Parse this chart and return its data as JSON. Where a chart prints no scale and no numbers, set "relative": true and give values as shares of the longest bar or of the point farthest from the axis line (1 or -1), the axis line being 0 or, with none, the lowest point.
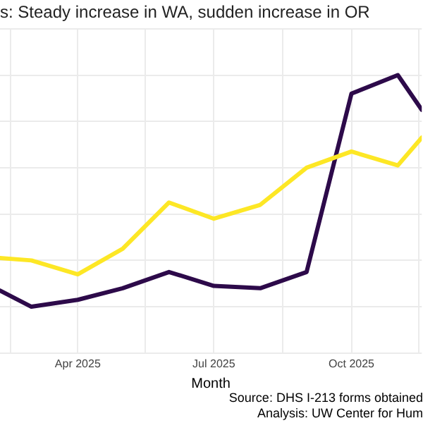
{
  "chart_data": {
    "type": "line",
    "title": "s: Steady increase in WA, sudden increase in OR",
    "xlabel": "Month",
    "relative": true,
    "grid": true,
    "marker": "none",
    "line_style": "solid",
    "x": [
      "2025-02-08",
      "2025-03-01",
      "2025-04-01",
      "2025-05-01",
      "2025-06-01",
      "2025-07-01",
      "2025-08-01",
      "2025-09-01",
      "2025-10-01",
      "2025-11-01",
      "2025-11-17"
    ],
    "xlim": [
      "2025-02-08",
      "2025-11-17"
    ],
    "xticks": [
      {
        "value": "2025-02-15",
        "label": null
      },
      {
        "value": "2025-04-01",
        "label": "Apr 2025"
      },
      {
        "value": "2025-05-16",
        "label": null
      },
      {
        "value": "2025-07-01",
        "label": "Jul 2025"
      },
      {
        "value": "2025-08-16",
        "label": null
      },
      {
        "value": "2025-10-01",
        "label": "Oct 2025"
      },
      {
        "value": "2025-11-15",
        "label": null
      }
    ],
    "series": [
      {
        "color": "#fde725",
        "values": [
          0.21,
          0.2,
          0.14,
          0.25,
          0.45,
          0.38,
          0.44,
          0.6,
          0.67,
          0.61,
          0.73
        ]
      },
      {
        "color": "#2d0a4a",
        "values": [
          0.07,
          0,
          0.03,
          0.08,
          0.15,
          0.09,
          0.08,
          0.15,
          0.92,
          1,
          0.85
        ]
      }
    ],
    "annotations": [
      "Source: DHS I-213 forms obtained",
      "Analysis: UW Center for Hum"
    ]
  }
}
